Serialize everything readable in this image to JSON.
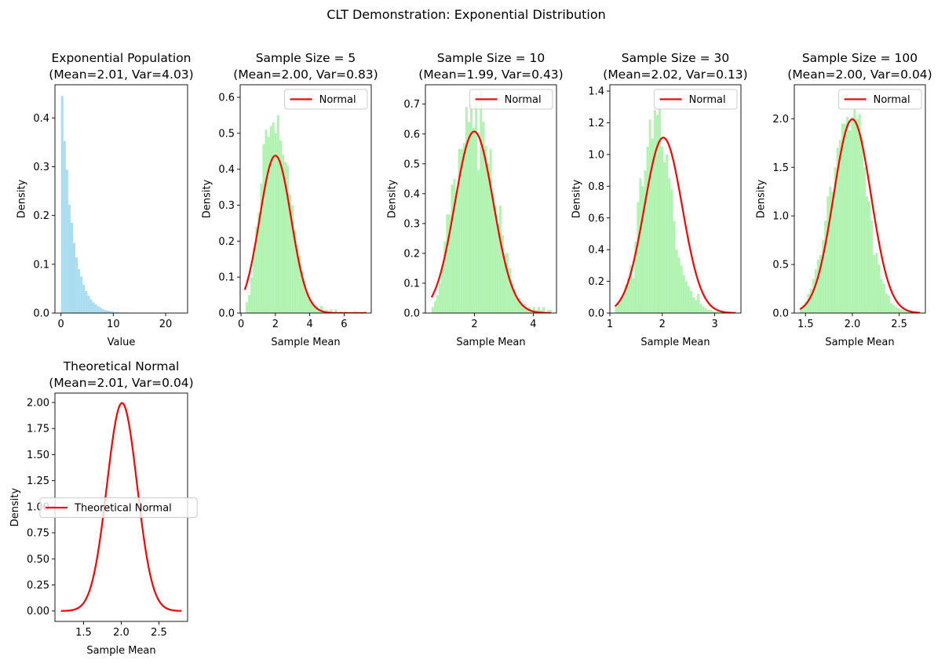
{
  "figure": {
    "suptitle": "CLT Demonstration: Exponential Distribution"
  },
  "chart_data": [
    {
      "type": "histogram",
      "title": "Exponential Population",
      "subtitle": "(Mean=2.01, Var=4.03)",
      "xlabel": "Value",
      "ylabel": "Density",
      "xlim": [
        -1.15,
        24.2
      ],
      "ylim": [
        0,
        0.468
      ],
      "xticks": [
        0,
        10,
        20
      ],
      "xtick_labels": [
        "0",
        "10",
        "20"
      ],
      "yticks": [
        0,
        0.1,
        0.2,
        0.3,
        0.4
      ],
      "ytick_labels": [
        "0.0",
        "0.1",
        "0.2",
        "0.3",
        "0.4"
      ],
      "bar_color": "#87CEEB",
      "bars": {
        "start": 0,
        "width": 0.46,
        "values": [
          0.445,
          0.353,
          0.294,
          0.222,
          0.185,
          0.144,
          0.114,
          0.09,
          0.075,
          0.058,
          0.045,
          0.036,
          0.028,
          0.022,
          0.018,
          0.014,
          0.011,
          0.008,
          0.006,
          0.005,
          0.004,
          0.003,
          0.002,
          0.002,
          0.001,
          0.001,
          0.001,
          0.001,
          0.0005,
          0.0005
        ]
      },
      "legend": null
    },
    {
      "type": "histogram+line",
      "title": "Sample Size = 5",
      "subtitle": "(Mean=2.00, Var=0.83)",
      "xlabel": "Sample Mean",
      "ylabel": "Density",
      "xlim": [
        -0.05,
        7.58
      ],
      "ylim": [
        0,
        0.635
      ],
      "xticks": [
        0,
        2,
        4,
        6
      ],
      "xtick_labels": [
        "0",
        "2",
        "4",
        "6"
      ],
      "yticks": [
        0,
        0.1,
        0.2,
        0.3,
        0.4,
        0.5,
        0.6
      ],
      "ytick_labels": [
        "0.0",
        "0.1",
        "0.2",
        "0.3",
        "0.4",
        "0.5",
        "0.6"
      ],
      "bar_color": "#90EE90",
      "line_color": "#FF0000",
      "bars": {
        "start": 0.27,
        "width": 0.14,
        "values": [
          0.03,
          0.05,
          0.1,
          0.18,
          0.24,
          0.28,
          0.36,
          0.47,
          0.51,
          0.49,
          0.52,
          0.53,
          0.5,
          0.55,
          0.48,
          0.44,
          0.42,
          0.41,
          0.33,
          0.3,
          0.23,
          0.19,
          0.16,
          0.12,
          0.09,
          0.06,
          0.04,
          0.03,
          0.02,
          0.02,
          0.01,
          0.02,
          0.0,
          0.01,
          0.0,
          0.01,
          0.0,
          0.01,
          0.0,
          0.005,
          0.0,
          0.005,
          0.0,
          0.0,
          0.0,
          0.005,
          0.0,
          0.0,
          0.0,
          0.005
        ]
      },
      "curve": {
        "type": "normal",
        "mean": 2.0,
        "var": 0.83,
        "x_range": [
          0.22,
          7.3
        ]
      },
      "legend": {
        "entries": [
          "Normal"
        ],
        "position": "upper right"
      }
    },
    {
      "type": "histogram+line",
      "title": "Sample Size = 10",
      "subtitle": "(Mean=1.99, Var=0.43)",
      "xlabel": "Sample Mean",
      "ylabel": "Density",
      "xlim": [
        0.33,
        4.79
      ],
      "ylim": [
        0,
        0.765
      ],
      "xticks": [
        2,
        4
      ],
      "xtick_labels": [
        "2",
        "4"
      ],
      "yticks": [
        0,
        0.1,
        0.2,
        0.3,
        0.4,
        0.5,
        0.6,
        0.7
      ],
      "ytick_labels": [
        "0.0",
        "0.1",
        "0.2",
        "0.3",
        "0.4",
        "0.5",
        "0.6",
        "0.7"
      ],
      "bar_color": "#90EE90",
      "line_color": "#FF0000",
      "bars": {
        "start": 0.54,
        "width": 0.082,
        "values": [
          0.02,
          0.04,
          0.06,
          0.1,
          0.16,
          0.24,
          0.33,
          0.33,
          0.43,
          0.45,
          0.4,
          0.55,
          0.55,
          0.57,
          0.69,
          0.64,
          0.7,
          0.62,
          0.73,
          0.48,
          0.75,
          0.64,
          0.56,
          0.5,
          0.55,
          0.4,
          0.36,
          0.3,
          0.36,
          0.26,
          0.2,
          0.2,
          0.15,
          0.1,
          0.08,
          0.05,
          0.05,
          0.04,
          0.03,
          0.02,
          0.02,
          0.01,
          0.02,
          0.01,
          0.02,
          0.01,
          0.02,
          0.0,
          0.01,
          0.01
        ]
      },
      "curve": {
        "type": "normal",
        "mean": 1.99,
        "var": 0.43,
        "x_range": [
          0.54,
          4.6
        ]
      },
      "legend": {
        "entries": [
          "Normal"
        ],
        "position": "upper right"
      }
    },
    {
      "type": "histogram+line",
      "title": "Sample Size = 30",
      "subtitle": "(Mean=2.02, Var=0.13)",
      "xlabel": "Sample Mean",
      "ylabel": "Density",
      "xlim": [
        1.0,
        3.5
      ],
      "ylim": [
        0,
        1.44
      ],
      "xticks": [
        1,
        2,
        3
      ],
      "xtick_labels": [
        "1",
        "2",
        "3"
      ],
      "yticks": [
        0,
        0.2,
        0.4,
        0.6,
        0.8,
        1.0,
        1.2,
        1.4
      ],
      "ytick_labels": [
        "0.0",
        "0.2",
        "0.4",
        "0.6",
        "0.8",
        "1.0",
        "1.2",
        "1.4"
      ],
      "bar_color": "#90EE90",
      "line_color": "#FF0000",
      "bars": {
        "start": 1.1,
        "width": 0.046,
        "values": [
          0.04,
          0.06,
          0.1,
          0.12,
          0.18,
          0.22,
          0.3,
          0.22,
          0.45,
          0.7,
          0.85,
          0.8,
          0.9,
          1.05,
          1.22,
          1.1,
          1.28,
          1.25,
          1.3,
          1.05,
          0.95,
          1.0,
          0.85,
          0.78,
          0.58,
          0.4,
          0.35,
          0.3,
          0.24,
          0.2,
          0.17,
          0.14,
          0.1,
          0.08,
          0.12,
          0.06,
          0.04,
          0.03,
          0.02,
          0.02,
          0.01,
          0.01,
          0.01,
          0.0,
          0.01,
          0.0,
          0.005,
          0.0,
          0.0,
          0.005
        ]
      },
      "curve": {
        "type": "normal",
        "mean": 2.02,
        "var": 0.13,
        "x_range": [
          1.1,
          3.4
        ]
      },
      "legend": {
        "entries": [
          "Normal"
        ],
        "position": "upper right"
      }
    },
    {
      "type": "histogram+line",
      "title": "Sample Size = 100",
      "subtitle": "(Mean=2.00, Var=0.04)",
      "xlabel": "Sample Mean",
      "ylabel": "Density",
      "xlim": [
        1.38,
        2.78
      ],
      "ylim": [
        0,
        2.35
      ],
      "xticks": [
        1.5,
        2.0,
        2.5
      ],
      "xtick_labels": [
        "1.5",
        "2.0",
        "2.5"
      ],
      "yticks": [
        0,
        0.5,
        1.0,
        1.5,
        2.0
      ],
      "ytick_labels": [
        "0.0",
        "0.5",
        "1.0",
        "1.5",
        "2.0"
      ],
      "bar_color": "#90EE90",
      "line_color": "#FF0000",
      "bars": {
        "start": 1.44,
        "width": 0.026,
        "values": [
          0.05,
          0.08,
          0.12,
          0.2,
          0.25,
          0.35,
          0.45,
          0.55,
          0.6,
          0.75,
          0.95,
          1.2,
          1.3,
          1.25,
          1.5,
          1.7,
          1.78,
          1.95,
          1.95,
          2.02,
          1.88,
          2.02,
          2.1,
          2.0,
          2.05,
          1.82,
          1.5,
          1.2,
          1.15,
          0.95,
          0.6,
          0.62,
          0.5,
          0.35,
          0.3,
          0.2,
          0.18,
          0.1,
          0.08,
          0.06,
          0.05,
          0.04,
          0.03,
          0.02,
          0.02,
          0.01,
          0.01,
          0.01,
          0.01,
          0.01
        ]
      },
      "curve": {
        "type": "normal",
        "mean": 2.0,
        "var": 0.04,
        "x_range": [
          1.44,
          2.72
        ]
      },
      "legend": {
        "entries": [
          "Normal"
        ],
        "position": "upper right"
      }
    },
    {
      "type": "line",
      "title": "Theoretical Normal",
      "subtitle": "(Mean=2.01, Var=0.04)",
      "xlabel": "Sample Mean",
      "ylabel": "Density",
      "xlim": [
        1.12,
        2.88
      ],
      "ylim": [
        -0.1,
        2.09
      ],
      "xticks": [
        1.5,
        2.0,
        2.5
      ],
      "xtick_labels": [
        "1.5",
        "2.0",
        "2.5"
      ],
      "yticks": [
        0,
        0.25,
        0.5,
        0.75,
        1.0,
        1.25,
        1.5,
        1.75,
        2.0
      ],
      "ytick_labels": [
        "0.00",
        "0.25",
        "0.50",
        "0.75",
        "1.00",
        "1.25",
        "1.50",
        "1.75",
        "2.00"
      ],
      "line_color": "#FF0000",
      "bars": null,
      "curve": {
        "type": "normal",
        "mean": 2.01,
        "var": 0.04,
        "x_range": [
          1.2,
          2.8
        ]
      },
      "legend": {
        "entries": [
          "Theoretical Normal"
        ],
        "position": "center left"
      }
    }
  ]
}
